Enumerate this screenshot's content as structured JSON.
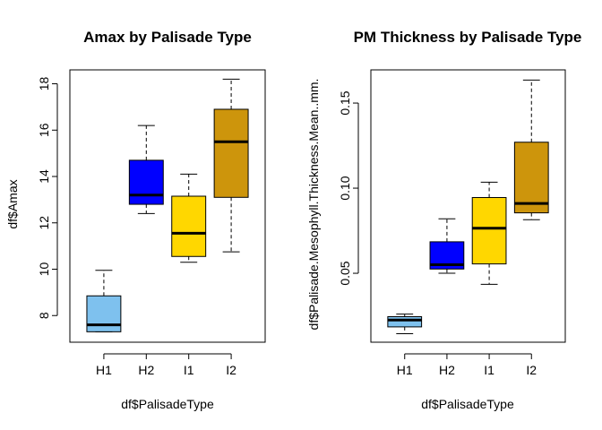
{
  "chart_data": [
    {
      "type": "boxplot",
      "title": "Amax by Palisade Type",
      "xlabel": "df$PalisadeType",
      "ylabel": "df$Amax",
      "categories": [
        "H1",
        "H2",
        "I1",
        "I2"
      ],
      "ylim": [
        6.85,
        18.6
      ],
      "yticks": [
        8,
        10,
        12,
        14,
        16,
        18
      ],
      "ytick_labels": [
        "8",
        "10",
        "12",
        "14",
        "16",
        "18"
      ],
      "boxes": [
        {
          "category": "H1",
          "min": 7.3,
          "q1": 7.3,
          "median": 7.6,
          "q3": 8.85,
          "max": 9.95,
          "color": "#7ec1ee"
        },
        {
          "category": "H2",
          "min": 12.4,
          "q1": 12.8,
          "median": 13.2,
          "q3": 14.7,
          "max": 16.2,
          "color": "#0000ff"
        },
        {
          "category": "I1",
          "min": 10.3,
          "q1": 10.55,
          "median": 11.55,
          "q3": 13.15,
          "max": 14.1,
          "color": "#ffd700"
        },
        {
          "category": "I2",
          "min": 10.75,
          "q1": 13.1,
          "median": 15.5,
          "q3": 16.9,
          "max": 18.2,
          "color": "#cd950c"
        }
      ]
    },
    {
      "type": "boxplot",
      "title": "PM Thickness by Palisade Type",
      "xlabel": "df$PalisadeType",
      "ylabel": "df$Palisade.Mesophyll.Thickness.Mean..mm.",
      "categories": [
        "H1",
        "H2",
        "I1",
        "I2"
      ],
      "ylim": [
        0.0095,
        0.1695
      ],
      "yticks": [
        0.05,
        0.1,
        0.15
      ],
      "ytick_labels": [
        "0.05",
        "0.10",
        "0.15"
      ],
      "boxes": [
        {
          "category": "H1",
          "min": 0.0145,
          "q1": 0.0185,
          "median": 0.0225,
          "q3": 0.0245,
          "max": 0.026,
          "color": "#7ec1ee"
        },
        {
          "category": "H2",
          "min": 0.05,
          "q1": 0.0525,
          "median": 0.055,
          "q3": 0.0685,
          "max": 0.082,
          "color": "#0000ff"
        },
        {
          "category": "I1",
          "min": 0.0435,
          "q1": 0.0555,
          "median": 0.0765,
          "q3": 0.0945,
          "max": 0.1035,
          "color": "#ffd700"
        },
        {
          "category": "I2",
          "min": 0.0815,
          "q1": 0.0855,
          "median": 0.091,
          "q3": 0.127,
          "max": 0.1635,
          "color": "#cd950c"
        }
      ]
    }
  ]
}
